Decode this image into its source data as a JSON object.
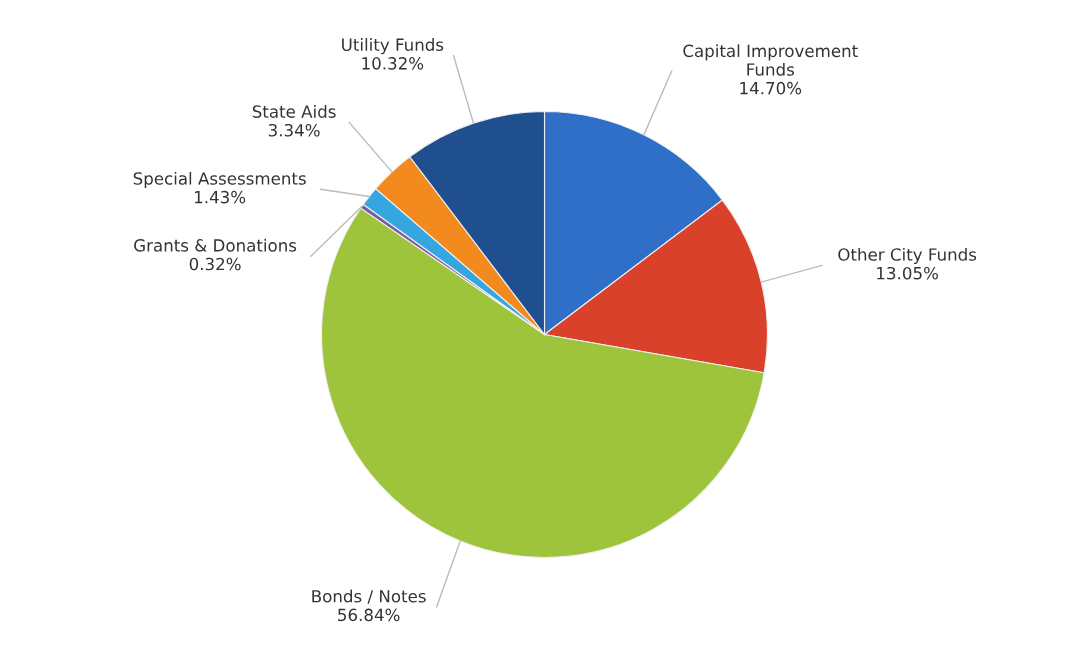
{
  "chart_data": {
    "type": "pie",
    "categories": [
      "Capital Improvement\nFunds",
      "Other City Funds",
      "Bonds / Notes",
      "Grants & Donations",
      "Special Assessments",
      "State Aids",
      "Utility Funds"
    ],
    "values": [
      14.7,
      13.05,
      56.84,
      0.32,
      1.43,
      3.34,
      10.32
    ],
    "value_labels": [
      "14.70%",
      "13.05%",
      "56.84%",
      "0.32%",
      "1.43%",
      "3.34%",
      "10.32%"
    ],
    "colors": [
      "#2f6fc8",
      "#d9412b",
      "#9dc43a",
      "#7b5aa6",
      "#36a6e0",
      "#f28a1e",
      "#1f4f8f"
    ]
  }
}
